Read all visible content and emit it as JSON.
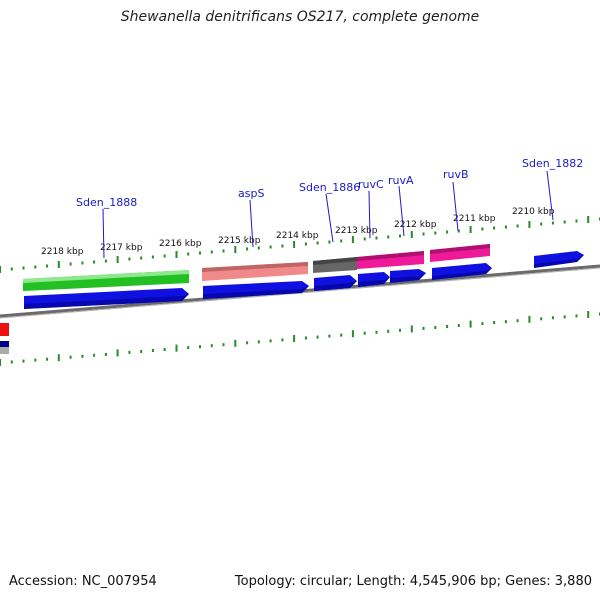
{
  "title": "Shewanella denitrificans OS217, complete genome",
  "footer": {
    "accession": "Accession: NC_007954",
    "summary": "Topology: circular; Length: 4,545,906 bp; Genes: 3,880"
  },
  "colors": {
    "backbone": "#808080",
    "tick": "#2a8a2a",
    "cds": "#1010e0",
    "gene_green": "#22c022",
    "gene_salmon": "#f08a8a",
    "gene_gray": "#666666",
    "gene_pink": "#ee1a9a",
    "label": "#1a1acc"
  },
  "kbp_labels": [
    "2218 kbp",
    "2217 kbp",
    "2216 kbp",
    "2215 kbp",
    "2214 kbp",
    "2213 kbp",
    "2212 kbp",
    "2211 kbp",
    "2210 kbp"
  ],
  "gene_labels": [
    "Sden_1888",
    "aspS",
    "Sden_1886",
    "ruvC",
    "ruvA",
    "ruvB",
    "Sden_1882"
  ]
}
